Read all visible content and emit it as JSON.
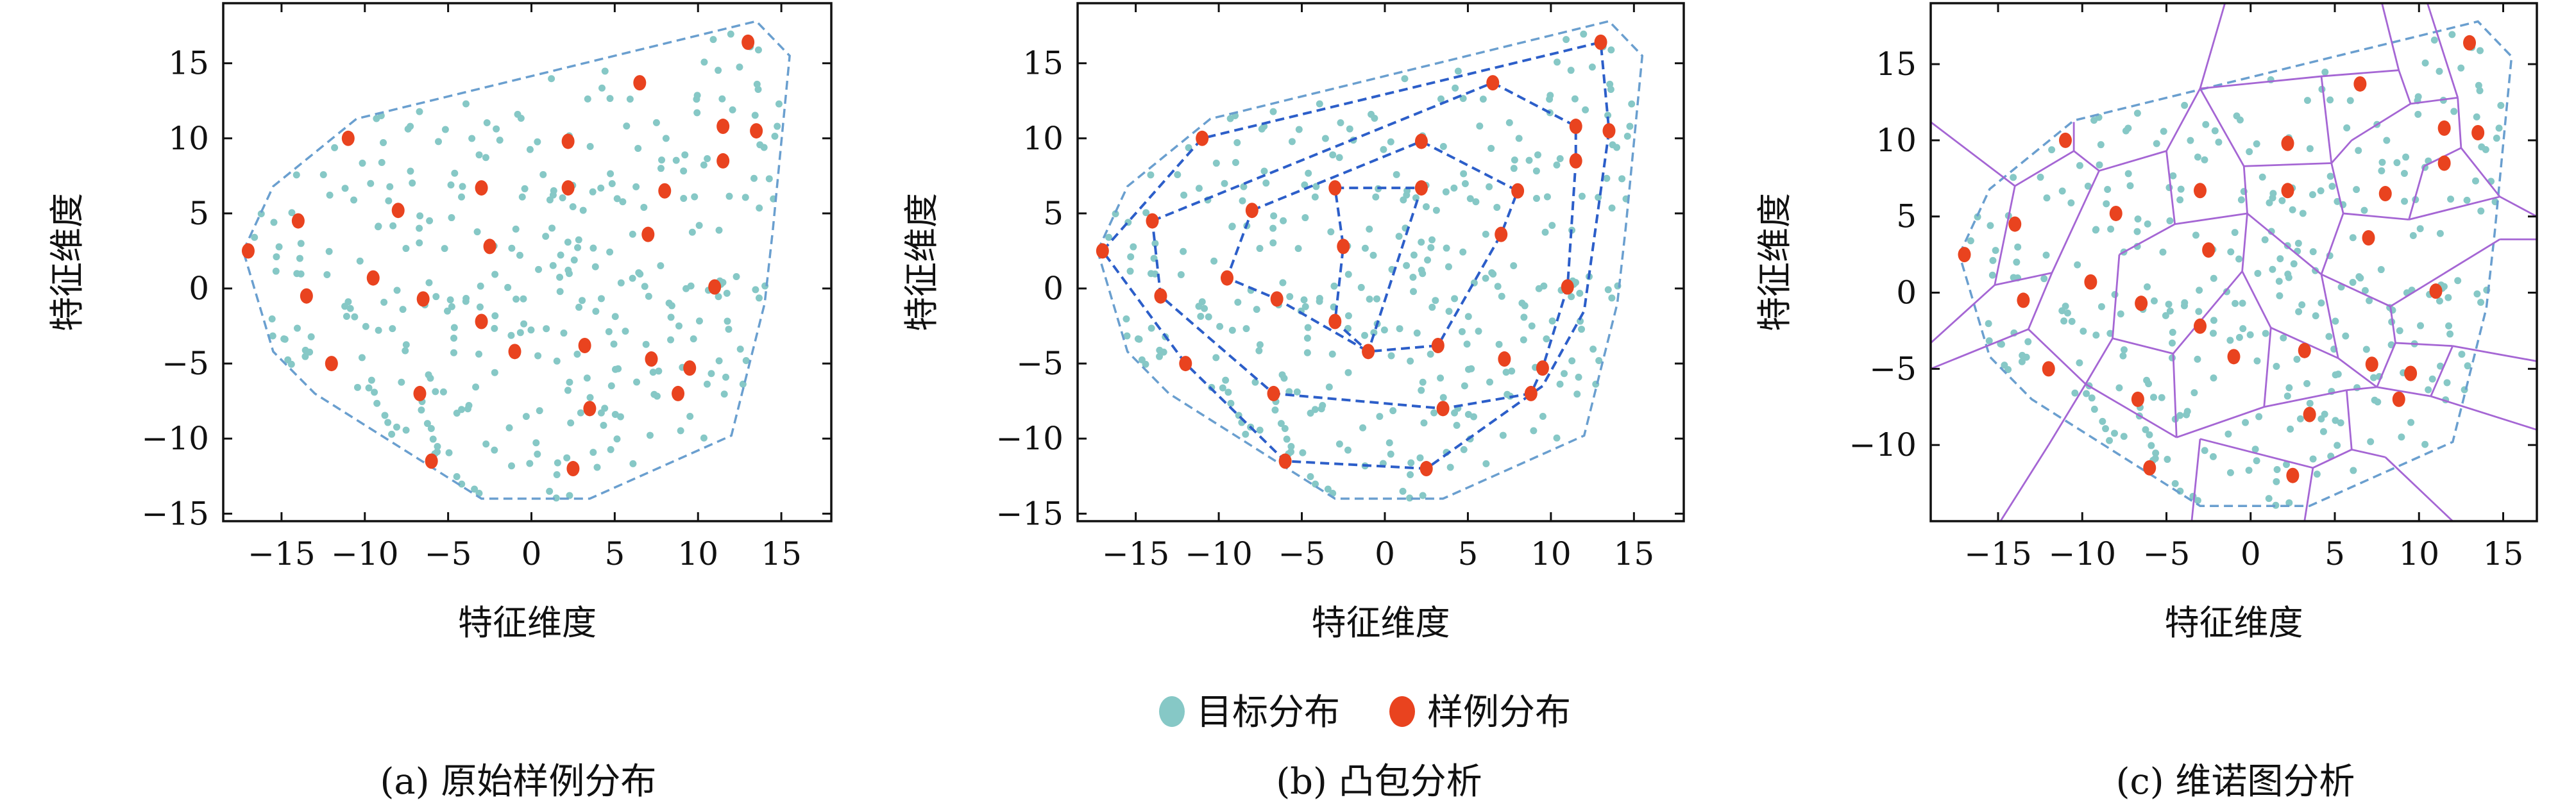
{
  "colors": {
    "target": "#86c8c6",
    "sample": "#e9431f",
    "hull": "#6a9fcf",
    "hull_inner": "#2c5ec9",
    "voronoi": "#a566d4"
  },
  "legend": [
    {
      "label": "目标分布",
      "color": "#86c8c6"
    },
    {
      "label": "样例分布",
      "color": "#e9431f"
    }
  ],
  "chart_data": [
    {
      "type": "scatter",
      "caption": "(a) 原始样例分布",
      "xlabel": "特征维度",
      "ylabel": "特征维度",
      "xlim": [
        -18.5,
        18
      ],
      "ylim": [
        -15.5,
        19
      ],
      "xticks": [
        -15,
        -10,
        -5,
        0,
        5,
        10,
        15
      ],
      "yticks": [
        -15,
        -10,
        -5,
        0,
        5,
        10,
        15
      ],
      "grid": false,
      "overlay": "outer-hull"
    },
    {
      "type": "scatter",
      "caption": "(b) 凸包分析",
      "xlabel": "特征维度",
      "ylabel": "特征维度",
      "xlim": [
        -18.5,
        18
      ],
      "ylim": [
        -15.5,
        19
      ],
      "xticks": [
        -15,
        -10,
        -5,
        0,
        5,
        10,
        15
      ],
      "yticks": [
        -15,
        -10,
        -5,
        0,
        5,
        10,
        15
      ],
      "grid": false,
      "overlay": "nested-hulls"
    },
    {
      "type": "scatter",
      "caption": "(c) 维诺图分析",
      "xlabel": "特征维度",
      "ylabel": "特征维度",
      "xlim": [
        -19,
        17
      ],
      "ylim": [
        -15,
        19
      ],
      "xticks": [
        -15,
        -10,
        -5,
        0,
        5,
        10,
        15
      ],
      "yticks": [
        -10,
        -5,
        0,
        5,
        10,
        15
      ],
      "grid": false,
      "overlay": "voronoi"
    }
  ],
  "samples": [
    [
      -17,
      2.5
    ],
    [
      -14,
      4.5
    ],
    [
      -13.5,
      -0.5
    ],
    [
      -12,
      -5
    ],
    [
      -11,
      10
    ],
    [
      -9.5,
      0.7
    ],
    [
      -8,
      5.2
    ],
    [
      -6.5,
      -0.7
    ],
    [
      -6.7,
      -7
    ],
    [
      -6,
      -11.5
    ],
    [
      -3,
      6.7
    ],
    [
      -2.5,
      2.8
    ],
    [
      -3,
      -2.2
    ],
    [
      -1,
      -4.2
    ],
    [
      2.2,
      9.8
    ],
    [
      2.2,
      6.7
    ],
    [
      3.2,
      -3.8
    ],
    [
      3.5,
      -8
    ],
    [
      2.5,
      -12
    ],
    [
      6.5,
      13.7
    ],
    [
      7,
      3.6
    ],
    [
      7.2,
      -4.7
    ],
    [
      8,
      6.5
    ],
    [
      8.8,
      -7
    ],
    [
      9.5,
      -5.3
    ],
    [
      11,
      0.1
    ],
    [
      11.5,
      10.8
    ],
    [
      11.5,
      8.5
    ],
    [
      13,
      16.4
    ],
    [
      13.5,
      10.5
    ]
  ],
  "outer_hull": [
    [
      -17.3,
      2.5
    ],
    [
      -15.5,
      6.8
    ],
    [
      -10.5,
      11.3
    ],
    [
      13.5,
      17.8
    ],
    [
      15.5,
      15.5
    ],
    [
      14.5,
      4
    ],
    [
      14,
      -1
    ],
    [
      12,
      -9.8
    ],
    [
      3.5,
      -14
    ],
    [
      -3,
      -14
    ],
    [
      -13,
      -7
    ],
    [
      -15.5,
      -4.2
    ]
  ],
  "inner_hulls": [
    [
      [
        -17,
        2.5
      ],
      [
        -11,
        10
      ],
      [
        13,
        16.4
      ],
      [
        13.5,
        10.5
      ],
      [
        12,
        -1.5
      ],
      [
        9.5,
        -6.5
      ],
      [
        2.5,
        -12
      ],
      [
        -6,
        -11.5
      ],
      [
        -12,
        -5
      ]
    ],
    [
      [
        -14,
        4.5
      ],
      [
        6.5,
        13.7
      ],
      [
        11.5,
        10.8
      ],
      [
        11.5,
        8.5
      ],
      [
        11,
        0.1
      ],
      [
        9.5,
        -5.3
      ],
      [
        8.8,
        -7
      ],
      [
        3.5,
        -8
      ],
      [
        -6.7,
        -7
      ],
      [
        -13.5,
        -0.5
      ]
    ],
    [
      [
        -8,
        5.2
      ],
      [
        2.2,
        9.8
      ],
      [
        8,
        6.5
      ],
      [
        7,
        3.6
      ],
      [
        3.2,
        -3.8
      ],
      [
        -1,
        -4.2
      ],
      [
        -6.5,
        -0.7
      ],
      [
        -9.5,
        0.7
      ]
    ],
    [
      [
        -3,
        6.7
      ],
      [
        2.2,
        6.7
      ],
      [
        -1,
        -4.2
      ],
      [
        -3,
        -2.2
      ],
      [
        -2.5,
        2.8
      ]
    ]
  ]
}
